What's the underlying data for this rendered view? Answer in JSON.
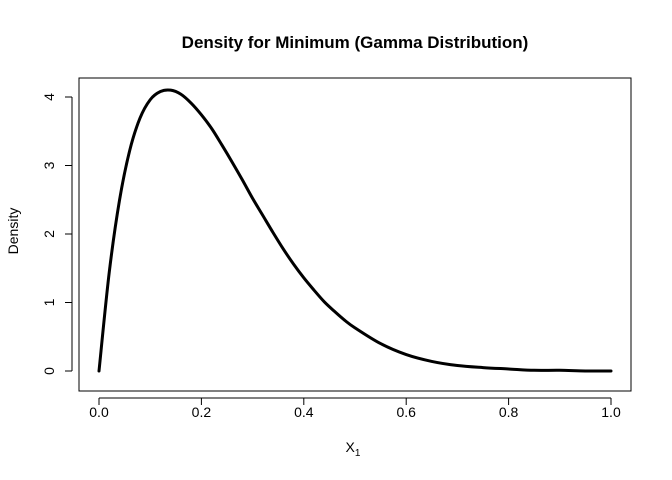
{
  "chart_data": {
    "type": "line",
    "title": "Density for Minimum (Gamma Distribution)",
    "xlabel_main": "X",
    "xlabel_sub": "1",
    "ylabel": "Density",
    "xlim": [
      0,
      1
    ],
    "ylim": [
      0,
      4.1
    ],
    "x_ticks": [
      0.0,
      0.2,
      0.4,
      0.6,
      0.8,
      1.0
    ],
    "x_tick_labels": [
      "0.0",
      "0.2",
      "0.4",
      "0.6",
      "0.8",
      "1.0"
    ],
    "y_ticks": [
      0,
      1,
      2,
      3,
      4
    ],
    "y_tick_labels": [
      "0",
      "1",
      "2",
      "3",
      "4"
    ],
    "grid": false,
    "series": [
      {
        "color": "#000000",
        "x": [
          0.0,
          0.02,
          0.04,
          0.06,
          0.08,
          0.1,
          0.12,
          0.14,
          0.16,
          0.18,
          0.2,
          0.22,
          0.24,
          0.26,
          0.28,
          0.3,
          0.32,
          0.34,
          0.36,
          0.38,
          0.4,
          0.42,
          0.44,
          0.46,
          0.48,
          0.5,
          0.55,
          0.6,
          0.65,
          0.7,
          0.75,
          0.8,
          0.85,
          0.9,
          0.95,
          1.0
        ],
        "y": [
          0.0,
          1.44,
          2.49,
          3.22,
          3.69,
          3.96,
          4.08,
          4.1,
          4.04,
          3.91,
          3.74,
          3.54,
          3.3,
          3.05,
          2.79,
          2.52,
          2.27,
          2.02,
          1.78,
          1.56,
          1.36,
          1.18,
          1.01,
          0.87,
          0.74,
          0.63,
          0.4,
          0.24,
          0.14,
          0.08,
          0.05,
          0.03,
          0.01,
          0.01,
          0.0,
          0.0
        ]
      }
    ]
  }
}
